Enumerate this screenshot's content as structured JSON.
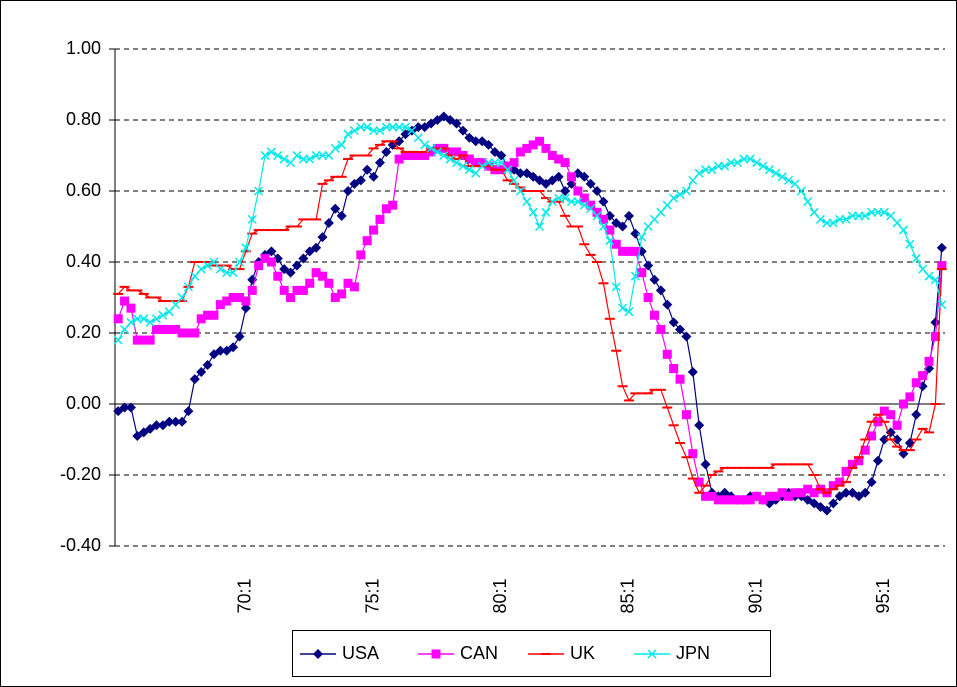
{
  "chart_data": {
    "type": "line",
    "categories": [
      null,
      null,
      null,
      null,
      null,
      null,
      null,
      null,
      null,
      null,
      null,
      null,
      null,
      null,
      null,
      null,
      null,
      null,
      null,
      null,
      "70:1",
      null,
      null,
      null,
      null,
      null,
      null,
      null,
      null,
      null,
      null,
      null,
      null,
      null,
      null,
      null,
      null,
      null,
      null,
      null,
      "75:1",
      null,
      null,
      null,
      null,
      null,
      null,
      null,
      null,
      null,
      null,
      null,
      null,
      null,
      null,
      null,
      null,
      null,
      null,
      null,
      "80:1",
      null,
      null,
      null,
      null,
      null,
      null,
      null,
      null,
      null,
      null,
      null,
      null,
      null,
      null,
      null,
      null,
      null,
      null,
      null,
      "85:1",
      null,
      null,
      null,
      null,
      null,
      null,
      null,
      null,
      null,
      null,
      null,
      null,
      null,
      null,
      null,
      null,
      null,
      null,
      null,
      "90:1",
      null,
      null,
      null,
      null,
      null,
      null,
      null,
      null,
      null,
      null,
      null,
      null,
      null,
      null,
      null,
      null,
      null,
      null,
      null,
      "95:1",
      null,
      null,
      null,
      null,
      null,
      null,
      null,
      null,
      null
    ],
    "series": [
      {
        "name": "USA",
        "color": "#000080",
        "marker": "diamond",
        "values": [
          -0.02,
          -0.01,
          -0.01,
          -0.09,
          -0.08,
          -0.07,
          -0.06,
          -0.06,
          -0.05,
          -0.05,
          -0.05,
          -0.02,
          0.07,
          0.09,
          0.11,
          0.14,
          0.15,
          0.15,
          0.16,
          0.19,
          0.27,
          0.35,
          0.4,
          0.42,
          0.43,
          0.41,
          0.38,
          0.37,
          0.39,
          0.41,
          0.43,
          0.44,
          0.47,
          0.51,
          0.55,
          0.53,
          0.6,
          0.62,
          0.63,
          0.66,
          0.64,
          0.68,
          0.71,
          0.73,
          0.74,
          0.76,
          0.77,
          0.78,
          0.78,
          0.79,
          0.8,
          0.81,
          0.8,
          0.79,
          0.77,
          0.75,
          0.74,
          0.74,
          0.73,
          0.71,
          0.7,
          0.67,
          0.66,
          0.65,
          0.65,
          0.64,
          0.63,
          0.62,
          0.63,
          0.64,
          0.6,
          0.62,
          0.65,
          0.64,
          0.62,
          0.6,
          0.57,
          0.53,
          0.51,
          0.5,
          0.53,
          0.48,
          0.43,
          0.39,
          0.35,
          0.32,
          0.28,
          0.23,
          0.21,
          0.19,
          0.09,
          -0.06,
          -0.17,
          -0.25,
          -0.26,
          -0.25,
          -0.26,
          -0.27,
          -0.27,
          -0.26,
          -0.26,
          -0.27,
          -0.28,
          -0.27,
          -0.26,
          -0.25,
          -0.26,
          -0.26,
          -0.27,
          -0.28,
          -0.29,
          -0.3,
          -0.28,
          -0.26,
          -0.25,
          -0.25,
          -0.26,
          -0.25,
          -0.22,
          -0.16,
          -0.1,
          -0.08,
          -0.1,
          -0.14,
          -0.11,
          -0.03,
          0.05,
          0.1,
          0.23,
          0.44
        ]
      },
      {
        "name": "CAN",
        "color": "#FF00FF",
        "marker": "square",
        "values": [
          0.24,
          0.29,
          0.27,
          0.18,
          0.18,
          0.18,
          0.21,
          0.21,
          0.21,
          0.21,
          0.2,
          0.2,
          0.2,
          0.24,
          0.25,
          0.25,
          0.28,
          0.29,
          0.3,
          0.3,
          0.29,
          0.32,
          0.39,
          0.41,
          0.4,
          0.36,
          0.32,
          0.3,
          0.32,
          0.32,
          0.34,
          0.37,
          0.36,
          0.34,
          0.3,
          0.31,
          0.34,
          0.33,
          0.42,
          0.46,
          0.49,
          0.52,
          0.55,
          0.56,
          0.69,
          0.7,
          0.7,
          0.7,
          0.7,
          0.71,
          0.72,
          0.72,
          0.71,
          0.71,
          0.7,
          0.69,
          0.68,
          0.68,
          0.67,
          0.66,
          0.66,
          0.67,
          0.68,
          0.71,
          0.72,
          0.73,
          0.74,
          0.72,
          0.7,
          0.69,
          0.68,
          0.64,
          0.6,
          0.58,
          0.56,
          0.54,
          0.52,
          0.49,
          0.45,
          0.43,
          0.43,
          0.43,
          0.37,
          0.3,
          0.25,
          0.21,
          0.14,
          0.1,
          0.07,
          -0.03,
          -0.14,
          -0.22,
          -0.26,
          -0.26,
          -0.27,
          -0.27,
          -0.27,
          -0.27,
          -0.27,
          -0.27,
          -0.26,
          -0.27,
          -0.26,
          -0.26,
          -0.25,
          -0.26,
          -0.25,
          -0.25,
          -0.24,
          -0.25,
          -0.24,
          -0.25,
          -0.23,
          -0.22,
          -0.19,
          -0.17,
          -0.16,
          -0.13,
          -0.09,
          -0.05,
          -0.02,
          -0.03,
          -0.06,
          0.0,
          0.02,
          0.06,
          0.08,
          0.12,
          0.19,
          0.39
        ]
      },
      {
        "name": "UK",
        "color": "#FF0000",
        "marker": "dash",
        "values": [
          0.31,
          0.33,
          0.32,
          0.32,
          0.31,
          0.3,
          0.3,
          0.29,
          0.29,
          0.29,
          0.29,
          0.33,
          0.4,
          0.4,
          0.4,
          0.39,
          0.39,
          0.39,
          0.38,
          0.38,
          0.43,
          0.48,
          0.49,
          0.49,
          0.49,
          0.49,
          0.49,
          0.5,
          0.5,
          0.52,
          0.52,
          0.52,
          0.62,
          0.63,
          0.64,
          0.64,
          0.69,
          0.7,
          0.7,
          0.7,
          0.72,
          0.73,
          0.74,
          0.74,
          0.72,
          0.71,
          0.71,
          0.71,
          0.71,
          0.72,
          0.72,
          0.72,
          0.7,
          0.69,
          0.7,
          0.67,
          0.67,
          0.67,
          0.67,
          0.66,
          0.66,
          0.63,
          0.62,
          0.61,
          0.6,
          0.6,
          0.6,
          0.58,
          0.57,
          0.57,
          0.53,
          0.5,
          0.5,
          0.45,
          0.42,
          0.4,
          0.34,
          0.24,
          0.15,
          0.05,
          0.01,
          0.03,
          0.03,
          0.03,
          0.04,
          0.04,
          -0.01,
          -0.06,
          -0.11,
          -0.15,
          -0.21,
          -0.25,
          -0.23,
          -0.2,
          -0.19,
          -0.18,
          -0.18,
          -0.18,
          -0.18,
          -0.18,
          -0.18,
          -0.18,
          -0.18,
          -0.17,
          -0.17,
          -0.17,
          -0.17,
          -0.17,
          -0.17,
          -0.2,
          -0.24,
          -0.25,
          -0.24,
          -0.23,
          -0.22,
          -0.18,
          -0.15,
          -0.1,
          -0.05,
          -0.03,
          -0.05,
          -0.1,
          -0.12,
          -0.13,
          -0.13,
          -0.1,
          -0.07,
          -0.08,
          0.0,
          0.38
        ]
      },
      {
        "name": "JPN",
        "color": "#00E8E8",
        "marker": "cross",
        "values": [
          0.18,
          0.21,
          0.23,
          0.24,
          0.24,
          0.23,
          0.24,
          0.25,
          0.26,
          0.28,
          0.3,
          0.33,
          0.36,
          0.38,
          0.39,
          0.4,
          0.38,
          0.37,
          0.37,
          0.4,
          0.44,
          0.52,
          0.6,
          0.7,
          0.71,
          0.7,
          0.69,
          0.68,
          0.7,
          0.69,
          0.69,
          0.7,
          0.7,
          0.7,
          0.72,
          0.73,
          0.76,
          0.77,
          0.78,
          0.78,
          0.77,
          0.77,
          0.78,
          0.78,
          0.78,
          0.78,
          0.77,
          0.75,
          0.73,
          0.72,
          0.71,
          0.7,
          0.69,
          0.68,
          0.67,
          0.66,
          0.65,
          0.67,
          0.68,
          0.68,
          0.68,
          0.66,
          0.63,
          0.6,
          0.57,
          0.54,
          0.5,
          0.54,
          0.57,
          0.58,
          0.58,
          0.57,
          0.57,
          0.56,
          0.55,
          0.53,
          0.5,
          0.46,
          0.33,
          0.27,
          0.26,
          0.36,
          0.47,
          0.5,
          0.52,
          0.54,
          0.56,
          0.58,
          0.59,
          0.6,
          0.63,
          0.65,
          0.66,
          0.66,
          0.67,
          0.67,
          0.68,
          0.68,
          0.69,
          0.69,
          0.68,
          0.67,
          0.66,
          0.65,
          0.64,
          0.63,
          0.62,
          0.6,
          0.57,
          0.54,
          0.52,
          0.51,
          0.51,
          0.52,
          0.52,
          0.53,
          0.53,
          0.53,
          0.54,
          0.54,
          0.54,
          0.53,
          0.51,
          0.49,
          0.45,
          0.41,
          0.38,
          0.36,
          0.35,
          0.28
        ]
      }
    ],
    "ylim": [
      -0.4,
      1.0
    ],
    "yticks": [
      {
        "value": 1.0,
        "label": "1.00"
      },
      {
        "value": 0.8,
        "label": "0.80"
      },
      {
        "value": 0.6,
        "label": "0.60"
      },
      {
        "value": 0.4,
        "label": "0.40"
      },
      {
        "value": 0.2,
        "label": "0.20"
      },
      {
        "value": 0.0,
        "label": "0.00"
      },
      {
        "value": -0.2,
        "label": "-0.20"
      },
      {
        "value": -0.4,
        "label": "-0.40"
      }
    ],
    "grid": true,
    "legend": "bottom"
  }
}
